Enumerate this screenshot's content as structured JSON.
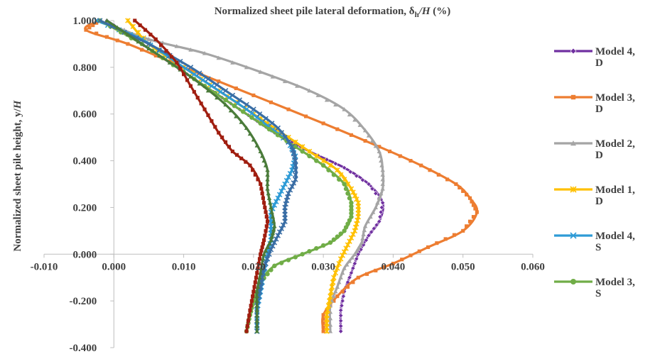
{
  "chart_data": {
    "type": "line",
    "title": "",
    "xlabel": "Normalized sheet pile  lateral  deformation, δh/H (%)",
    "xlabel_parts": {
      "main": "Normalized sheet pile  lateral  deformation, δ",
      "sub": "h",
      "italic": "/H",
      "tail": " (%)"
    },
    "ylabel": "Normalized sheet pile height, y/H",
    "ylabel_parts": {
      "main": "Normalized sheet pile height, y/",
      "italic": "H"
    },
    "xlim": [
      -0.01,
      0.06
    ],
    "ylim": [
      -0.4,
      1.0
    ],
    "x_ticks": [
      "-0.010",
      "0.000",
      "0.010",
      "0.020",
      "0.030",
      "0.040",
      "0.050",
      "0.060"
    ],
    "y_ticks": [
      "1.000",
      "0.800",
      "0.600",
      "0.400",
      "0.200",
      "0.000",
      "-0.200",
      "-0.400"
    ],
    "grid": false,
    "legend_position": "right",
    "series": [
      {
        "name": "Model 4, D",
        "color": "#7030A0",
        "marker": "diamond",
        "points": [
          [
            -0.001,
            1.0
          ],
          [
            0.003,
            0.92
          ],
          [
            0.008,
            0.82
          ],
          [
            0.013,
            0.72
          ],
          [
            0.018,
            0.62
          ],
          [
            0.023,
            0.52
          ],
          [
            0.028,
            0.44
          ],
          [
            0.033,
            0.37
          ],
          [
            0.0365,
            0.3
          ],
          [
            0.0385,
            0.22
          ],
          [
            0.038,
            0.14
          ],
          [
            0.0365,
            0.08
          ],
          [
            0.035,
            0.0
          ],
          [
            0.034,
            -0.08
          ],
          [
            0.033,
            -0.16
          ],
          [
            0.0325,
            -0.24
          ],
          [
            0.0325,
            -0.33
          ]
        ]
      },
      {
        "name": "Model 3, D",
        "color": "#ED7D31",
        "marker": "square",
        "points": [
          [
            -0.002,
            1.0
          ],
          [
            -0.004,
            0.96
          ],
          [
            0.002,
            0.9
          ],
          [
            0.01,
            0.8
          ],
          [
            0.02,
            0.68
          ],
          [
            0.03,
            0.56
          ],
          [
            0.038,
            0.46
          ],
          [
            0.044,
            0.38
          ],
          [
            0.049,
            0.3
          ],
          [
            0.051,
            0.24
          ],
          [
            0.052,
            0.18
          ],
          [
            0.05,
            0.1
          ],
          [
            0.045,
            0.03
          ],
          [
            0.04,
            -0.04
          ],
          [
            0.035,
            -0.1
          ],
          [
            0.032,
            -0.18
          ],
          [
            0.03,
            -0.26
          ],
          [
            0.03,
            -0.33
          ]
        ]
      },
      {
        "name": "Model 2, D",
        "color": "#A5A5A5",
        "marker": "triangle",
        "points": [
          [
            -0.002,
            1.0
          ],
          [
            0.005,
            0.92
          ],
          [
            0.013,
            0.86
          ],
          [
            0.021,
            0.78
          ],
          [
            0.028,
            0.7
          ],
          [
            0.033,
            0.62
          ],
          [
            0.036,
            0.53
          ],
          [
            0.038,
            0.44
          ],
          [
            0.0385,
            0.36
          ],
          [
            0.0385,
            0.28
          ],
          [
            0.0375,
            0.2
          ],
          [
            0.036,
            0.12
          ],
          [
            0.0355,
            0.05
          ],
          [
            0.0345,
            0.0
          ],
          [
            0.033,
            -0.06
          ],
          [
            0.032,
            -0.14
          ],
          [
            0.031,
            -0.22
          ],
          [
            0.031,
            -0.33
          ]
        ]
      },
      {
        "name": "Model 1, D",
        "color": "#FFC000",
        "marker": "star",
        "points": [
          [
            0.002,
            1.0
          ],
          [
            0.005,
            0.9
          ],
          [
            0.01,
            0.8
          ],
          [
            0.015,
            0.7
          ],
          [
            0.02,
            0.6
          ],
          [
            0.024,
            0.52
          ],
          [
            0.028,
            0.44
          ],
          [
            0.032,
            0.36
          ],
          [
            0.034,
            0.28
          ],
          [
            0.035,
            0.22
          ],
          [
            0.035,
            0.16
          ],
          [
            0.0345,
            0.1
          ],
          [
            0.0335,
            0.04
          ],
          [
            0.0325,
            -0.02
          ],
          [
            0.0315,
            -0.1
          ],
          [
            0.031,
            -0.18
          ],
          [
            0.0305,
            -0.26
          ],
          [
            0.0305,
            -0.33
          ]
        ]
      },
      {
        "name": "Model 4, S",
        "color": "#2E9BD6",
        "marker": "x",
        "points": [
          [
            -0.0025,
            1.0
          ],
          [
            0.004,
            0.92
          ],
          [
            0.009,
            0.82
          ],
          [
            0.014,
            0.72
          ],
          [
            0.019,
            0.62
          ],
          [
            0.022,
            0.55
          ],
          [
            0.025,
            0.48
          ],
          [
            0.026,
            0.42
          ],
          [
            0.0255,
            0.36
          ],
          [
            0.0245,
            0.3
          ],
          [
            0.0235,
            0.24
          ],
          [
            0.0225,
            0.18
          ],
          [
            0.0225,
            0.12
          ],
          [
            0.0225,
            0.06
          ],
          [
            0.022,
            0.0
          ],
          [
            0.0215,
            -0.08
          ],
          [
            0.021,
            -0.16
          ],
          [
            0.0205,
            -0.24
          ],
          [
            0.0205,
            -0.33
          ]
        ]
      },
      {
        "name": "Model 3, S",
        "color": "#70AD47",
        "marker": "circle",
        "points": [
          [
            -0.002,
            1.0
          ],
          [
            0.004,
            0.9
          ],
          [
            0.01,
            0.78
          ],
          [
            0.016,
            0.66
          ],
          [
            0.021,
            0.56
          ],
          [
            0.026,
            0.46
          ],
          [
            0.03,
            0.38
          ],
          [
            0.033,
            0.3
          ],
          [
            0.034,
            0.22
          ],
          [
            0.034,
            0.16
          ],
          [
            0.033,
            0.1
          ],
          [
            0.031,
            0.05
          ],
          [
            0.027,
            0.0
          ],
          [
            0.023,
            -0.05
          ],
          [
            0.021,
            -0.12
          ],
          [
            0.02,
            -0.2
          ],
          [
            0.0195,
            -0.26
          ],
          [
            0.019,
            -0.33
          ]
        ]
      },
      {
        "name": "",
        "color": "#3A6EA5",
        "marker": "x",
        "points": [
          [
            -0.002,
            1.0
          ],
          [
            0.005,
            0.9
          ],
          [
            0.011,
            0.8
          ],
          [
            0.016,
            0.7
          ],
          [
            0.02,
            0.62
          ],
          [
            0.0235,
            0.54
          ],
          [
            0.0255,
            0.46
          ],
          [
            0.026,
            0.4
          ],
          [
            0.026,
            0.32
          ],
          [
            0.025,
            0.26
          ],
          [
            0.0245,
            0.2
          ],
          [
            0.0245,
            0.14
          ],
          [
            0.0235,
            0.08
          ],
          [
            0.0225,
            0.02
          ],
          [
            0.0215,
            -0.06
          ],
          [
            0.021,
            -0.14
          ],
          [
            0.0205,
            -0.22
          ],
          [
            0.0205,
            -0.33
          ]
        ]
      },
      {
        "name": "",
        "color": "#4A7B3A",
        "marker": "triangle",
        "points": [
          [
            -0.001,
            1.0
          ],
          [
            0.005,
            0.88
          ],
          [
            0.011,
            0.76
          ],
          [
            0.016,
            0.64
          ],
          [
            0.019,
            0.54
          ],
          [
            0.021,
            0.44
          ],
          [
            0.022,
            0.36
          ],
          [
            0.022,
            0.28
          ],
          [
            0.0225,
            0.2
          ],
          [
            0.023,
            0.12
          ],
          [
            0.0225,
            0.06
          ],
          [
            0.0215,
            0.0
          ],
          [
            0.021,
            -0.08
          ],
          [
            0.0205,
            -0.16
          ],
          [
            0.0205,
            -0.24
          ],
          [
            0.0205,
            -0.33
          ]
        ]
      },
      {
        "name": "",
        "color": "#A01E10",
        "marker": "square",
        "points": [
          [
            0.003,
            1.0
          ],
          [
            0.006,
            0.92
          ],
          [
            0.009,
            0.82
          ],
          [
            0.011,
            0.72
          ],
          [
            0.013,
            0.62
          ],
          [
            0.015,
            0.52
          ],
          [
            0.017,
            0.44
          ],
          [
            0.0195,
            0.38
          ],
          [
            0.021,
            0.3
          ],
          [
            0.0215,
            0.22
          ],
          [
            0.022,
            0.14
          ],
          [
            0.0215,
            0.06
          ],
          [
            0.021,
            0.0
          ],
          [
            0.0205,
            -0.08
          ],
          [
            0.02,
            -0.16
          ],
          [
            0.0195,
            -0.24
          ],
          [
            0.019,
            -0.33
          ]
        ]
      }
    ]
  }
}
